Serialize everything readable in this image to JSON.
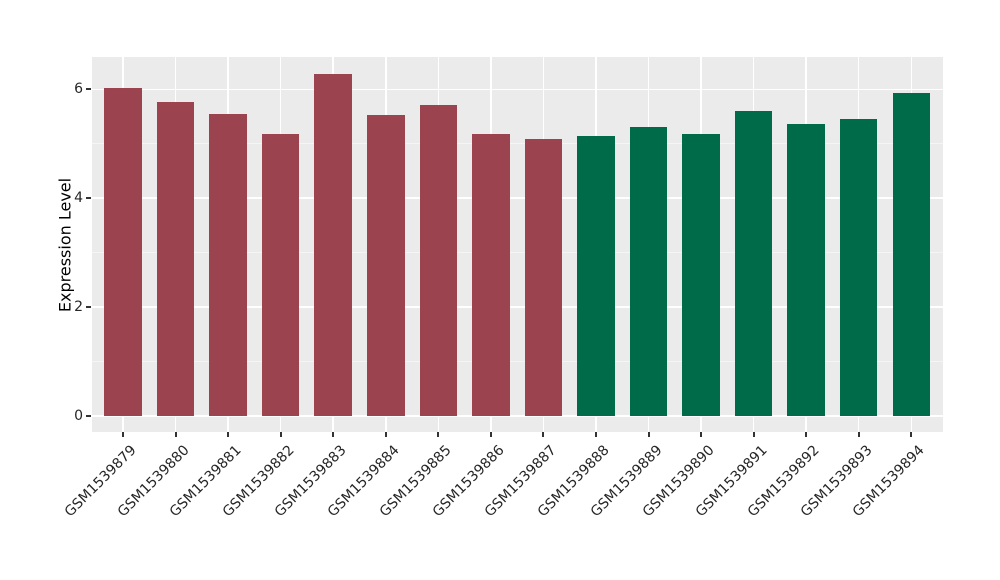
{
  "style": {
    "figure_bg": "#FFFFFF",
    "panel_bg": "#EBEBEB",
    "grid_major_color": "#FFFFFF",
    "grid_minor_color": "#F5F5F5",
    "axis_text_color": "#262626",
    "axis_title_color": "#000000",
    "tick_mark_color": "#333333"
  },
  "chart_data": {
    "type": "bar",
    "title": "",
    "xlabel": "",
    "ylabel": "Expression Level",
    "ylim": [
      0,
      6.6
    ],
    "y_major_ticks": [
      0,
      2,
      4,
      6
    ],
    "y_minor_gridlines": [
      1,
      3,
      5
    ],
    "grid": "on",
    "legend": "none",
    "x_tick_angle": -45,
    "categories": [
      "GSM1539879",
      "GSM1539880",
      "GSM1539881",
      "GSM1539882",
      "GSM1539883",
      "GSM1539884",
      "GSM1539885",
      "GSM1539886",
      "GSM1539887",
      "GSM1539888",
      "GSM1539889",
      "GSM1539890",
      "GSM1539891",
      "GSM1539892",
      "GSM1539893",
      "GSM1539894"
    ],
    "series": [
      {
        "name": "Expression Level",
        "values": [
          6.02,
          5.77,
          5.54,
          5.17,
          6.29,
          5.52,
          5.71,
          5.17,
          5.09,
          5.14,
          5.3,
          5.18,
          5.6,
          5.37,
          5.45,
          5.93
        ]
      }
    ],
    "bar_groups": [
      "group1",
      "group1",
      "group1",
      "group1",
      "group1",
      "group1",
      "group1",
      "group1",
      "group1",
      "group2",
      "group2",
      "group2",
      "group2",
      "group2",
      "group2",
      "group2"
    ],
    "group_colors": {
      "group1": "#9B4450",
      "group2": "#006B49"
    }
  }
}
